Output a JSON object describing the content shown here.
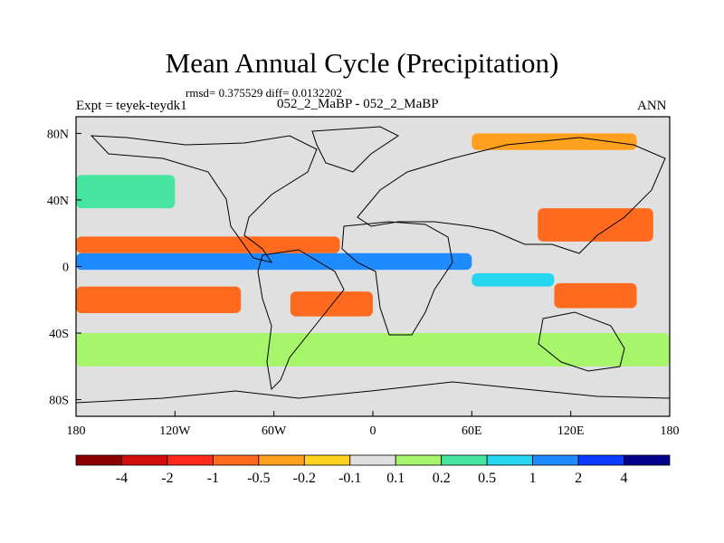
{
  "header": {
    "title": "Mean Annual Cycle (Precipitation)",
    "stats": "rmsd= 0.375529 diff= 0.0132202",
    "experiment": "Expt = teyek-teydk1",
    "comparison": "052_2_MaBP - 052_2_MaBP",
    "season": "ANN"
  },
  "chart_data": {
    "type": "heatmap",
    "title": "Mean Annual Cycle (Precipitation)",
    "projection": "cylindrical-equidistant",
    "xlim": [
      -180,
      180
    ],
    "ylim": [
      -90,
      90
    ],
    "x_ticks": [
      {
        "value": -180,
        "label": "180"
      },
      {
        "value": -120,
        "label": "120W"
      },
      {
        "value": -60,
        "label": "60W"
      },
      {
        "value": 0,
        "label": "0"
      },
      {
        "value": 60,
        "label": "60E"
      },
      {
        "value": 120,
        "label": "120E"
      },
      {
        "value": 180,
        "label": "180"
      }
    ],
    "y_ticks": [
      {
        "value": 80,
        "label": "80N"
      },
      {
        "value": 40,
        "label": "40N"
      },
      {
        "value": 0,
        "label": "0"
      },
      {
        "value": -40,
        "label": "40S"
      },
      {
        "value": -80,
        "label": "80S"
      }
    ],
    "colorbar": {
      "labels": [
        "-4",
        "-2",
        "-1",
        "-0.5",
        "-0.2",
        "-0.1",
        "0.1",
        "0.2",
        "0.5",
        "1",
        "2",
        "4"
      ],
      "colors": [
        "#8b0000",
        "#d10d0d",
        "#ff2a1a",
        "#ff6a1e",
        "#ffa01e",
        "#ffd21e",
        "#e0e0e0",
        "#a6f56b",
        "#46e6a0",
        "#26d6f0",
        "#1e8cff",
        "#0a3cff",
        "#00008b"
      ]
    },
    "features": [
      {
        "name": "equatorial-positive-band",
        "lon": [
          -180,
          60
        ],
        "lat": [
          -2,
          8
        ],
        "value": 1.5
      },
      {
        "name": "itcz-north-negative-band",
        "lon": [
          -180,
          -20
        ],
        "lat": [
          8,
          18
        ],
        "value": -0.6
      },
      {
        "name": "south-tropical-negative-band",
        "lon": [
          -180,
          -80
        ],
        "lat": [
          -28,
          -12
        ],
        "value": -0.7
      },
      {
        "name": "south-atlantic-negative",
        "lon": [
          -50,
          0
        ],
        "lat": [
          -30,
          -15
        ],
        "value": -0.6
      },
      {
        "name": "indian-ocean-positive",
        "lon": [
          60,
          110
        ],
        "lat": [
          -12,
          -4
        ],
        "value": 0.8
      },
      {
        "name": "west-pacific-negative",
        "lon": [
          110,
          160
        ],
        "lat": [
          -25,
          -10
        ],
        "value": -0.6
      },
      {
        "name": "east-asia-negative",
        "lon": [
          100,
          170
        ],
        "lat": [
          15,
          35
        ],
        "value": -0.5
      },
      {
        "name": "northwest-pacific-positive",
        "lon": [
          -180,
          -120
        ],
        "lat": [
          35,
          55
        ],
        "value": 0.3
      },
      {
        "name": "southern-ocean-positive",
        "lon": [
          -180,
          180
        ],
        "lat": [
          -60,
          -40
        ],
        "value": 0.2
      },
      {
        "name": "arctic-negative",
        "lon": [
          60,
          160
        ],
        "lat": [
          70,
          80
        ],
        "value": -0.2
      }
    ]
  }
}
